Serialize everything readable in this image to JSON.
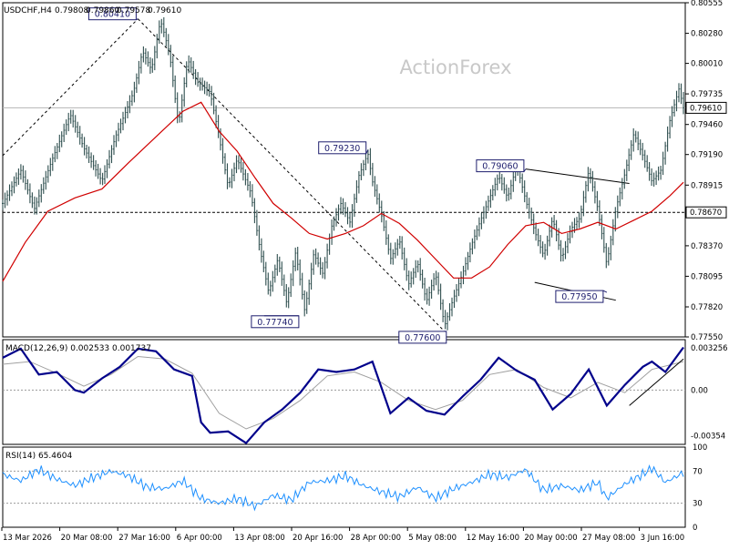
{
  "chart_data": {
    "type": "line",
    "symbol": "USDCHF,H4",
    "ohlc": [
      "0.79808",
      "0.79860",
      "0.79578",
      "0.79610"
    ],
    "watermark": "ActionForex",
    "price_axis": {
      "min": 0.7755,
      "max": 0.80555,
      "ticks": [
        "0.80555",
        "0.80280",
        "0.80010",
        "0.79735",
        "0.79460",
        "0.79190",
        "0.78915",
        "0.78370",
        "0.78095",
        "0.77820",
        "0.77550"
      ]
    },
    "current_price": {
      "label": "0.79610",
      "value": 0.7961
    },
    "reference_level": {
      "label": "0.78670",
      "value": 0.7867
    },
    "time_labels": [
      "13 Mar 2026",
      "20 Mar 08:00",
      "27 Mar 16:00",
      "6 Apr 00:00",
      "13 Apr 08:00",
      "20 Apr 16:00",
      "28 Apr 00:00",
      "5 May 08:00",
      "12 May 16:00",
      "20 May 00:00",
      "27 May 08:00",
      "3 Jun 16:00"
    ],
    "annotations": [
      {
        "label": "0.80410",
        "value": 0.8041
      },
      {
        "label": "0.77740",
        "value": 0.7774
      },
      {
        "label": "0.79230",
        "value": 0.7923
      },
      {
        "label": "0.77600",
        "value": 0.776
      },
      {
        "label": "0.79060",
        "value": 0.7906
      },
      {
        "label": "0.77950",
        "value": 0.7795
      }
    ],
    "price_path": [
      [
        0,
        0.7875
      ],
      [
        4,
        0.7905
      ],
      [
        7,
        0.787
      ],
      [
        11,
        0.7915
      ],
      [
        15,
        0.7955
      ],
      [
        18,
        0.7925
      ],
      [
        22,
        0.7895
      ],
      [
        25,
        0.7935
      ],
      [
        29,
        0.7975
      ],
      [
        31,
        0.8012
      ],
      [
        33,
        0.7995
      ],
      [
        35,
        0.804
      ],
      [
        37,
        0.801
      ],
      [
        39,
        0.7945
      ],
      [
        41,
        0.8005
      ],
      [
        43,
        0.7985
      ],
      [
        46,
        0.7975
      ],
      [
        48,
        0.7935
      ],
      [
        50,
        0.789
      ],
      [
        52,
        0.7915
      ],
      [
        55,
        0.7885
      ],
      [
        57,
        0.7835
      ],
      [
        59,
        0.7795
      ],
      [
        61,
        0.7825
      ],
      [
        63,
        0.7785
      ],
      [
        65,
        0.7832
      ],
      [
        67,
        0.7778
      ],
      [
        69,
        0.783
      ],
      [
        71,
        0.7812
      ],
      [
        73,
        0.7855
      ],
      [
        75,
        0.7875
      ],
      [
        77,
        0.7858
      ],
      [
        79,
        0.79
      ],
      [
        81,
        0.792
      ],
      [
        82,
        0.7895
      ],
      [
        84,
        0.7865
      ],
      [
        86,
        0.7825
      ],
      [
        88,
        0.7842
      ],
      [
        90,
        0.7802
      ],
      [
        92,
        0.7822
      ],
      [
        94,
        0.7787
      ],
      [
        96,
        0.7812
      ],
      [
        98,
        0.7765
      ],
      [
        100,
        0.779
      ],
      [
        102,
        0.7812
      ],
      [
        104,
        0.7838
      ],
      [
        106,
        0.786
      ],
      [
        108,
        0.788
      ],
      [
        110,
        0.79
      ],
      [
        112,
        0.788
      ],
      [
        114,
        0.791
      ],
      [
        116,
        0.7878
      ],
      [
        118,
        0.785
      ],
      [
        120,
        0.7828
      ],
      [
        122,
        0.7862
      ],
      [
        124,
        0.7825
      ],
      [
        126,
        0.7852
      ],
      [
        128,
        0.7862
      ],
      [
        130,
        0.7905
      ],
      [
        132,
        0.787
      ],
      [
        134,
        0.782
      ],
      [
        136,
        0.787
      ],
      [
        138,
        0.7902
      ],
      [
        140,
        0.7938
      ],
      [
        142,
        0.7918
      ],
      [
        144,
        0.7895
      ],
      [
        146,
        0.7905
      ],
      [
        148,
        0.795
      ],
      [
        150,
        0.7978
      ],
      [
        151,
        0.7961
      ]
    ],
    "ma_path": [
      [
        0,
        0.7805
      ],
      [
        5,
        0.784
      ],
      [
        10,
        0.7868
      ],
      [
        16,
        0.788
      ],
      [
        22,
        0.7888
      ],
      [
        28,
        0.7912
      ],
      [
        34,
        0.7935
      ],
      [
        40,
        0.7958
      ],
      [
        44,
        0.7966
      ],
      [
        48,
        0.794
      ],
      [
        52,
        0.7922
      ],
      [
        56,
        0.7898
      ],
      [
        60,
        0.7875
      ],
      [
        64,
        0.7862
      ],
      [
        68,
        0.7848
      ],
      [
        72,
        0.7843
      ],
      [
        76,
        0.7848
      ],
      [
        80,
        0.7855
      ],
      [
        84,
        0.7866
      ],
      [
        88,
        0.7857
      ],
      [
        92,
        0.7842
      ],
      [
        96,
        0.7825
      ],
      [
        100,
        0.7808
      ],
      [
        104,
        0.7808
      ],
      [
        108,
        0.7818
      ],
      [
        112,
        0.7838
      ],
      [
        116,
        0.7855
      ],
      [
        120,
        0.7858
      ],
      [
        124,
        0.7848
      ],
      [
        128,
        0.7852
      ],
      [
        132,
        0.7858
      ],
      [
        136,
        0.7852
      ],
      [
        140,
        0.786
      ],
      [
        144,
        0.7868
      ],
      [
        148,
        0.7882
      ],
      [
        151,
        0.7894
      ]
    ],
    "trendlines": [
      {
        "style": "dashed",
        "points": [
          [
            0,
            0.7918
          ],
          [
            30,
            0.8041
          ]
        ]
      },
      {
        "style": "dashed",
        "points": [
          [
            30,
            0.8041
          ],
          [
            98,
            0.776
          ]
        ]
      },
      {
        "style": "solid",
        "points": [
          [
            116,
            0.7906
          ],
          [
            139,
            0.7893
          ]
        ]
      },
      {
        "style": "solid",
        "points": [
          [
            118,
            0.7804
          ],
          [
            136,
            0.7788
          ]
        ]
      }
    ],
    "macd": {
      "label": "MACD(12,26,9) 0.002533 0.001737",
      "ticks": [
        "0.003256",
        "0.00",
        "-0.00354"
      ],
      "range": [
        -0.0042,
        0.0039
      ],
      "zero_value": 0,
      "main": [
        [
          0,
          0.0025
        ],
        [
          4,
          0.0032
        ],
        [
          8,
          0.0012
        ],
        [
          12,
          0.0014
        ],
        [
          16,
          0.0
        ],
        [
          18,
          -0.0002
        ],
        [
          22,
          0.0009
        ],
        [
          26,
          0.0018
        ],
        [
          30,
          0.0032
        ],
        [
          34,
          0.003
        ],
        [
          38,
          0.0016
        ],
        [
          42,
          0.0011
        ],
        [
          44,
          -0.0025
        ],
        [
          46,
          -0.0033
        ],
        [
          50,
          -0.0032
        ],
        [
          54,
          -0.0041
        ],
        [
          58,
          -0.0025
        ],
        [
          62,
          -0.0015
        ],
        [
          66,
          -0.0002
        ],
        [
          70,
          0.0016
        ],
        [
          74,
          0.0014
        ],
        [
          78,
          0.0016
        ],
        [
          82,
          0.0022
        ],
        [
          86,
          -0.0018
        ],
        [
          90,
          -0.0006
        ],
        [
          94,
          -0.0016
        ],
        [
          98,
          -0.0019
        ],
        [
          102,
          -0.0005
        ],
        [
          106,
          0.0008
        ],
        [
          110,
          0.0025
        ],
        [
          114,
          0.0015
        ],
        [
          118,
          0.0008
        ],
        [
          122,
          -0.0015
        ],
        [
          126,
          -0.0003
        ],
        [
          130,
          0.0016
        ],
        [
          134,
          -0.0012
        ],
        [
          138,
          0.0004
        ],
        [
          142,
          0.0018
        ],
        [
          144,
          0.0022
        ],
        [
          147,
          0.0014
        ],
        [
          151,
          0.0033
        ]
      ],
      "signal": [
        [
          0,
          0.002
        ],
        [
          6,
          0.0022
        ],
        [
          12,
          0.0013
        ],
        [
          18,
          0.0003
        ],
        [
          24,
          0.0012
        ],
        [
          30,
          0.0026
        ],
        [
          36,
          0.0024
        ],
        [
          42,
          0.0013
        ],
        [
          48,
          -0.0018
        ],
        [
          54,
          -0.003
        ],
        [
          60,
          -0.0022
        ],
        [
          66,
          -0.0008
        ],
        [
          72,
          0.0011
        ],
        [
          78,
          0.0014
        ],
        [
          84,
          0.0006
        ],
        [
          90,
          -0.0008
        ],
        [
          96,
          -0.0015
        ],
        [
          102,
          -0.0008
        ],
        [
          108,
          0.0012
        ],
        [
          114,
          0.0016
        ],
        [
          120,
          0.0002
        ],
        [
          126,
          -0.0006
        ],
        [
          132,
          0.0006
        ],
        [
          138,
          -0.0002
        ],
        [
          144,
          0.0016
        ],
        [
          151,
          0.0022
        ]
      ],
      "trendline": [
        [
          139,
          -0.0012
        ],
        [
          151,
          0.0024
        ]
      ]
    },
    "rsi": {
      "label": "RSI(14) 65.4604",
      "ticks": [
        "100",
        "70",
        "30",
        "0"
      ],
      "levels": [
        70,
        30
      ],
      "range": [
        0,
        100
      ],
      "path": [
        [
          0,
          66
        ],
        [
          4,
          58
        ],
        [
          8,
          72
        ],
        [
          12,
          60
        ],
        [
          16,
          52
        ],
        [
          20,
          62
        ],
        [
          24,
          70
        ],
        [
          28,
          64
        ],
        [
          32,
          50
        ],
        [
          36,
          48
        ],
        [
          40,
          58
        ],
        [
          44,
          36
        ],
        [
          48,
          30
        ],
        [
          52,
          36
        ],
        [
          56,
          26
        ],
        [
          60,
          40
        ],
        [
          64,
          34
        ],
        [
          68,
          56
        ],
        [
          72,
          58
        ],
        [
          76,
          64
        ],
        [
          80,
          52
        ],
        [
          84,
          44
        ],
        [
          88,
          38
        ],
        [
          92,
          50
        ],
        [
          96,
          36
        ],
        [
          100,
          48
        ],
        [
          104,
          56
        ],
        [
          108,
          66
        ],
        [
          112,
          62
        ],
        [
          116,
          72
        ],
        [
          120,
          46
        ],
        [
          124,
          52
        ],
        [
          128,
          46
        ],
        [
          132,
          56
        ],
        [
          134,
          36
        ],
        [
          138,
          54
        ],
        [
          142,
          66
        ],
        [
          144,
          74
        ],
        [
          147,
          56
        ],
        [
          151,
          68
        ]
      ]
    }
  }
}
